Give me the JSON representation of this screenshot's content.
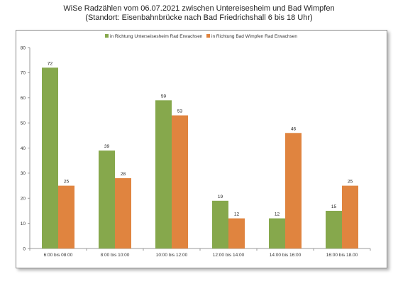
{
  "chart_data": {
    "type": "bar",
    "title": "WiSe Radzählen vom 06.07.2021 zwischen Untereisesheim und Bad Wimpfen",
    "subtitle": "(Standort: Eisenbahnbrücke nach Bad Friedrichshall 6 bis 18 Uhr)",
    "xlabel": "",
    "ylabel": "",
    "categories": [
      "6:00 bis 08:00",
      "8:00 bis 10:00",
      "10:00 bis 12:00",
      "12:00 bis 14:00",
      "14:00 bis 16:00",
      "16:00 bis 18.00"
    ],
    "series": [
      {
        "name": "in Richtung Unterseisesheim Rad Erwachsen",
        "values": [
          72,
          39,
          59,
          19,
          12,
          15
        ],
        "color": "#86a84c"
      },
      {
        "name": "in Richtung Bad Wimpfen Rad Erwachsen",
        "values": [
          25,
          28,
          53,
          12,
          46,
          25
        ],
        "color": "#e0843f"
      }
    ],
    "ylim": [
      0,
      80
    ],
    "yticks": [
      0,
      10,
      20,
      30,
      40,
      50,
      60,
      70,
      80
    ],
    "grid": false,
    "legend_position": "top-center",
    "data_labels": true
  }
}
